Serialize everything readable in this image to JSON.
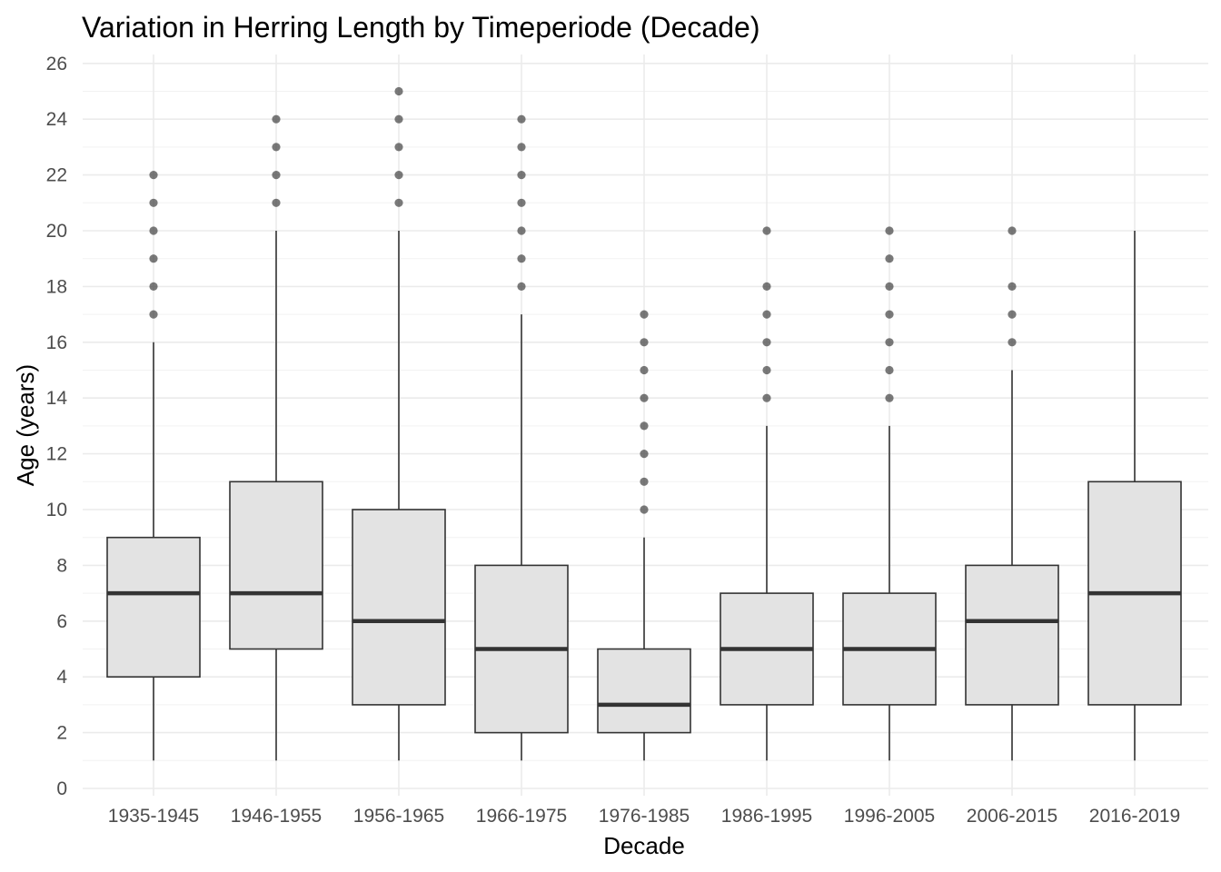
{
  "chart_data": {
    "type": "boxplot",
    "title": "Variation in Herring Length by Timeperiode (Decade)",
    "xlabel": "Decade",
    "ylabel": "Age (years)",
    "ylim": [
      0,
      26
    ],
    "y_ticks": [
      0,
      2,
      4,
      6,
      8,
      10,
      12,
      14,
      16,
      18,
      20,
      22,
      24,
      26
    ],
    "grid": true,
    "box_fill": "#e3e3e3",
    "box_stroke": "#333333",
    "outlier_color": "#333333",
    "categories": [
      "1935-1945",
      "1946-1955",
      "1956-1965",
      "1966-1975",
      "1976-1985",
      "1986-1995",
      "1996-2005",
      "2006-2015",
      "2016-2019"
    ],
    "boxes": [
      {
        "category": "1935-1945",
        "whisker_low": 1,
        "q1": 4,
        "median": 7,
        "q3": 9,
        "whisker_high": 16,
        "outliers": [
          17,
          18,
          19,
          20,
          21,
          22
        ]
      },
      {
        "category": "1946-1955",
        "whisker_low": 1,
        "q1": 5,
        "median": 7,
        "q3": 11,
        "whisker_high": 20,
        "outliers": [
          21,
          22,
          23,
          24
        ]
      },
      {
        "category": "1956-1965",
        "whisker_low": 1,
        "q1": 3,
        "median": 6,
        "q3": 10,
        "whisker_high": 20,
        "outliers": [
          21,
          22,
          23,
          24,
          25
        ]
      },
      {
        "category": "1966-1975",
        "whisker_low": 1,
        "q1": 2,
        "median": 5,
        "q3": 8,
        "whisker_high": 17,
        "outliers": [
          18,
          19,
          20,
          21,
          22,
          23,
          24
        ]
      },
      {
        "category": "1976-1985",
        "whisker_low": 1,
        "q1": 2,
        "median": 3,
        "q3": 5,
        "whisker_high": 9,
        "outliers": [
          10,
          11,
          12,
          13,
          14,
          15,
          16,
          17
        ]
      },
      {
        "category": "1986-1995",
        "whisker_low": 1,
        "q1": 3,
        "median": 5,
        "q3": 7,
        "whisker_high": 13,
        "outliers": [
          14,
          15,
          16,
          17,
          18,
          20
        ]
      },
      {
        "category": "1996-2005",
        "whisker_low": 1,
        "q1": 3,
        "median": 5,
        "q3": 7,
        "whisker_high": 13,
        "outliers": [
          14,
          15,
          16,
          17,
          18,
          19,
          20
        ]
      },
      {
        "category": "2006-2015",
        "whisker_low": 1,
        "q1": 3,
        "median": 6,
        "q3": 8,
        "whisker_high": 15,
        "outliers": [
          16,
          17,
          18,
          20
        ]
      },
      {
        "category": "2016-2019",
        "whisker_low": 1,
        "q1": 3,
        "median": 7,
        "q3": 11,
        "whisker_high": 20,
        "outliers": []
      }
    ]
  }
}
